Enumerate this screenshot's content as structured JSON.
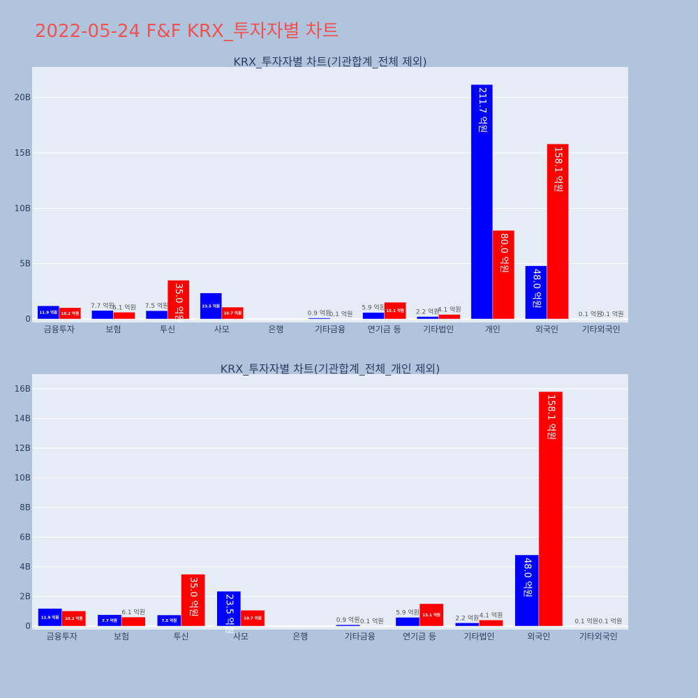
{
  "title": "2022-05-24 F&F KRX_투자자별 차트",
  "colors": {
    "buy": "#0000ff",
    "sell": "#ff0000",
    "plot_bg": "#e5ecf6",
    "page_bg": "#b0c4de",
    "title": "#ef5350"
  },
  "chart_data": [
    {
      "type": "bar",
      "title": "KRX_투자자별 차트(기관합계_전체 제외)",
      "categories": [
        "금융투자",
        "보험",
        "투신",
        "사모",
        "은행",
        "기타금융",
        "연기금 등",
        "기타법인",
        "개인",
        "외국인",
        "기타외국인"
      ],
      "series": [
        {
          "values": [
            1.19,
            0.77,
            0.75,
            2.35,
            0.0,
            0.09,
            0.59,
            0.22,
            21.17,
            4.8,
            0.01
          ],
          "labels": [
            "11.9 억원",
            "7.7 억원",
            "7.5 억원",
            "23.5 억원",
            "",
            "0.9 억원",
            "5.9 억원",
            "2.2 억원",
            "211.7 억원",
            "48.0 억원",
            "0.1 억원"
          ]
        },
        {
          "values": [
            1.02,
            0.61,
            3.5,
            1.07,
            0.0,
            0.01,
            1.51,
            0.41,
            8.0,
            15.81,
            0.01
          ],
          "labels": [
            "10.2 억원",
            "6.1 억원",
            "35.0 억원",
            "10.7 억원",
            "",
            "0.1 억원",
            "15.1 억원",
            "4.1 억원",
            "80.0 억원",
            "158.1 억원",
            "0.1 억원"
          ]
        }
      ],
      "ylim": [
        0,
        22.5
      ],
      "ticks": [
        0,
        5,
        10,
        15,
        20
      ],
      "tick_labels": [
        "0",
        "5B",
        "10B",
        "15B",
        "20B"
      ]
    },
    {
      "type": "bar",
      "title": "KRX_투자자별 차트(기관합계_전체_개인 제외)",
      "categories": [
        "금융투자",
        "보험",
        "투신",
        "사모",
        "은행",
        "기타금융",
        "연기금 등",
        "기타법인",
        "외국인",
        "기타외국인"
      ],
      "series": [
        {
          "values": [
            1.19,
            0.77,
            0.75,
            2.35,
            0.0,
            0.09,
            0.59,
            0.22,
            4.8,
            0.01
          ],
          "labels": [
            "11.9 억원",
            "7.7 억원",
            "7.5 억원",
            "23.5 억원",
            "",
            "0.9 억원",
            "5.9 억원",
            "2.2 억원",
            "48.0 억원",
            "0.1 억원"
          ]
        },
        {
          "values": [
            1.02,
            0.61,
            3.5,
            1.07,
            0.0,
            0.01,
            1.51,
            0.41,
            15.81,
            0.01
          ],
          "labels": [
            "10.2 억원",
            "6.1 억원",
            "35.0 억원",
            "10.7 억원",
            "",
            "0.1 억원",
            "15.1 억원",
            "4.1 억원",
            "158.1 억원",
            "0.1 억원"
          ]
        }
      ],
      "ylim": [
        0,
        16.8
      ],
      "ticks": [
        0,
        2,
        4,
        6,
        8,
        10,
        12,
        14,
        16
      ],
      "tick_labels": [
        "0",
        "2B",
        "4B",
        "6B",
        "8B",
        "10B",
        "12B",
        "14B",
        "16B"
      ]
    }
  ]
}
